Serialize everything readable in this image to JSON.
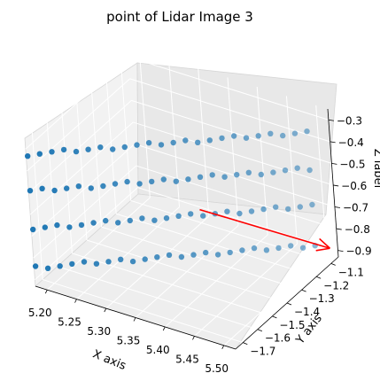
{
  "chart_data": {
    "type": "scatter3d",
    "title": "point of Lidar Image 3",
    "xlabel": "X axis",
    "ylabel": "Y axis",
    "zlabel": "Z label",
    "xlim": [
      5.18,
      5.52
    ],
    "ylim": [
      -1.75,
      -1.05
    ],
    "zlim": [
      -0.93,
      -0.25
    ],
    "x_ticks": [
      "5.20",
      "5.25",
      "5.30",
      "5.35",
      "5.40",
      "5.45",
      "5.50"
    ],
    "y_ticks": [
      "−1.1",
      "−1.2",
      "−1.3",
      "−1.4",
      "−1.5",
      "−1.6",
      "−1.7"
    ],
    "z_ticks": [
      "−0.3",
      "−0.4",
      "−0.5",
      "−0.6",
      "−0.7",
      "−0.8",
      "−0.9"
    ],
    "grid": true,
    "point_color": "#1f77b4",
    "vector_color": "#ff0000",
    "rows": [
      {
        "z": -0.33,
        "x_range": [
          5.18,
          5.5
        ],
        "y_range": [
          -1.74,
          -1.12
        ],
        "n": 24
      },
      {
        "z": -0.5,
        "x_range": [
          5.18,
          5.5
        ],
        "y_range": [
          -1.74,
          -1.12
        ],
        "n": 24
      },
      {
        "z": -0.67,
        "x_range": [
          5.18,
          5.5
        ],
        "y_range": [
          -1.74,
          -1.12
        ],
        "n": 24
      },
      {
        "z": -0.85,
        "x_range": [
          5.18,
          5.5
        ],
        "y_range": [
          -1.74,
          -1.12
        ],
        "n": 24
      }
    ],
    "vector": {
      "start": [
        5.38,
        -1.4,
        -0.62
      ],
      "end": [
        5.52,
        -1.1,
        -0.86
      ]
    }
  }
}
